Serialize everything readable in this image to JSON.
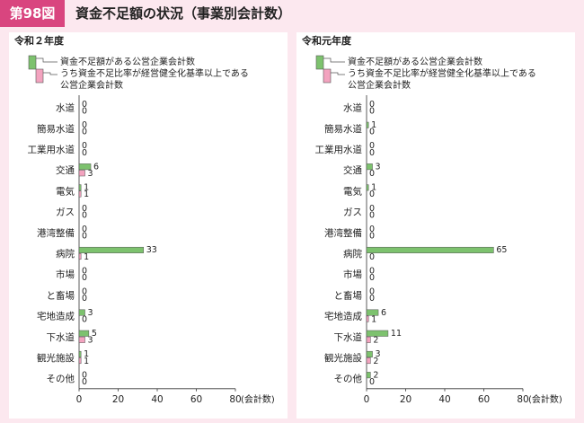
{
  "header": {
    "figure_label": "第98図",
    "title": "資金不足額の状況（事業別会計数）"
  },
  "legend": {
    "series1": "資金不足額がある公営企業会計数",
    "series2_line1": "うち資金不足比率が経営健全化基準以上である",
    "series2_line2": "公営企業会計数"
  },
  "colors": {
    "series1": "#7dc26e",
    "series2": "#f3a3bf",
    "accent": "#d9457f"
  },
  "chart_data": [
    {
      "type": "bar",
      "orientation": "horizontal",
      "title": "令和２年度",
      "xlabel": "(会計数)",
      "xlim": [
        0,
        80
      ],
      "xticks": [
        "0",
        "20",
        "40",
        "60",
        "80"
      ],
      "categories": [
        "水道",
        "簡易水道",
        "工業用水道",
        "交通",
        "電気",
        "ガス",
        "港湾整備",
        "病院",
        "市場",
        "と畜場",
        "宅地造成",
        "下水道",
        "観光施設",
        "その他"
      ],
      "series": [
        {
          "values": [
            0,
            0,
            0,
            6,
            1,
            0,
            0,
            33,
            0,
            0,
            3,
            5,
            1,
            0
          ]
        },
        {
          "values": [
            0,
            0,
            0,
            3,
            1,
            0,
            0,
            1,
            0,
            0,
            0,
            3,
            1,
            0
          ]
        }
      ]
    },
    {
      "type": "bar",
      "orientation": "horizontal",
      "title": "令和元年度",
      "xlabel": "(会計数)",
      "xlim": [
        0,
        80
      ],
      "xticks": [
        "0",
        "20",
        "40",
        "60",
        "80"
      ],
      "categories": [
        "水道",
        "簡易水道",
        "工業用水道",
        "交通",
        "電気",
        "ガス",
        "港湾整備",
        "病院",
        "市場",
        "と畜場",
        "宅地造成",
        "下水道",
        "観光施設",
        "その他"
      ],
      "series": [
        {
          "values": [
            0,
            1,
            0,
            3,
            1,
            0,
            0,
            65,
            0,
            0,
            6,
            11,
            3,
            2
          ]
        },
        {
          "values": [
            0,
            0,
            0,
            0,
            0,
            0,
            0,
            0,
            0,
            0,
            1,
            2,
            2,
            0
          ]
        }
      ]
    }
  ]
}
